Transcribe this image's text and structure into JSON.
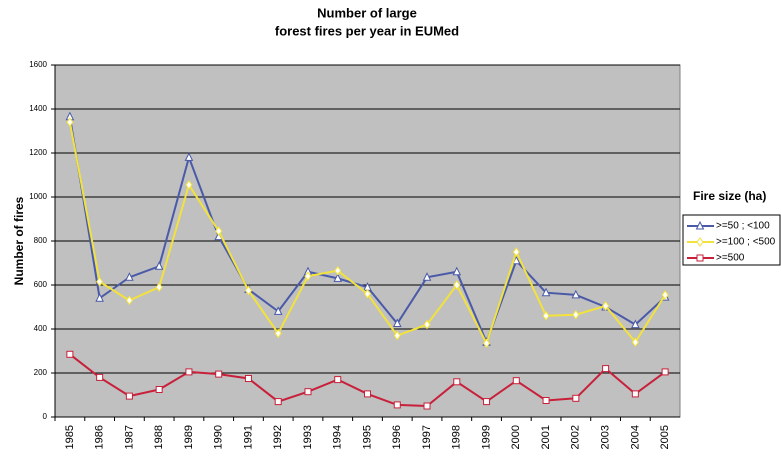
{
  "chart_data": {
    "type": "line",
    "title": [
      "Number of large",
      "forest fires per year in EUMed"
    ],
    "y_label": "Number of fires",
    "legend_title": "Fire size (ha)",
    "legend_position": "right",
    "categories": [
      "1985",
      "1986",
      "1987",
      "1988",
      "1989",
      "1990",
      "1991",
      "1992",
      "1993",
      "1994",
      "1995",
      "1996",
      "1997",
      "1998",
      "1999",
      "2000",
      "2001",
      "2002",
      "2003",
      "2004",
      "2005"
    ],
    "series": [
      {
        "name": ">=50 ; <100",
        "color": "#4a5aa8",
        "marker": "triangle",
        "values": [
          1365,
          540,
          635,
          685,
          1180,
          820,
          580,
          480,
          660,
          630,
          590,
          425,
          635,
          660,
          340,
          710,
          565,
          555,
          500,
          420,
          545
        ]
      },
      {
        "name": ">=100 ; <500",
        "color": "#f2e23c",
        "marker": "diamond",
        "values": [
          1340,
          615,
          530,
          590,
          1055,
          845,
          575,
          380,
          640,
          665,
          560,
          370,
          420,
          600,
          335,
          750,
          460,
          465,
          505,
          340,
          555
        ]
      },
      {
        "name": ">=500",
        "color": "#c8203a",
        "marker": "square",
        "values": [
          285,
          180,
          95,
          125,
          205,
          195,
          175,
          70,
          115,
          170,
          105,
          55,
          50,
          160,
          70,
          165,
          75,
          85,
          220,
          105,
          205
        ]
      }
    ],
    "ylim": [
      0,
      1600
    ],
    "yticks": [
      0,
      200,
      400,
      600,
      800,
      1000,
      1200,
      1400,
      1600
    ],
    "grid": true,
    "plot_background": "#c0c0c0"
  }
}
